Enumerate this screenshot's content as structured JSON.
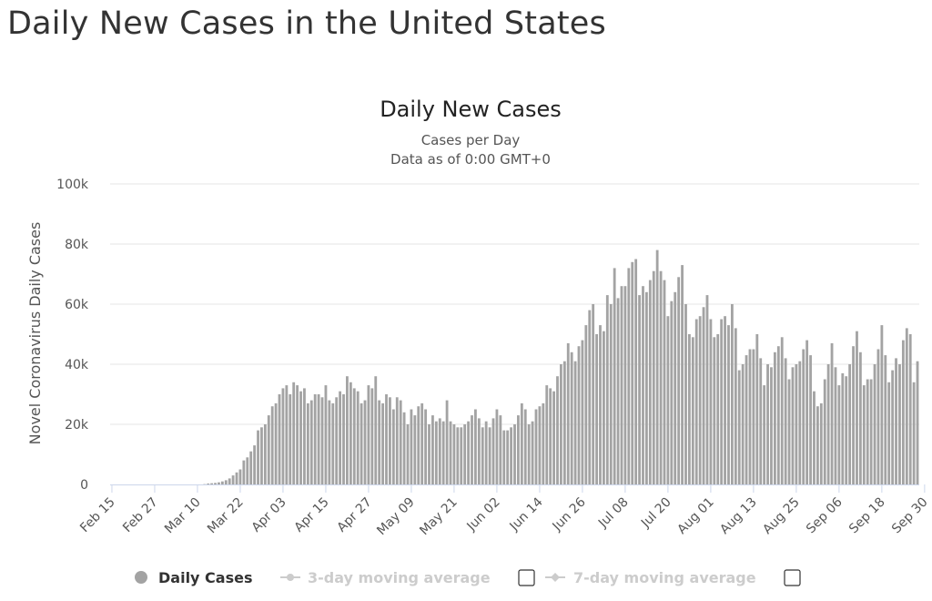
{
  "page": {
    "title": "Daily New Cases in the United States"
  },
  "chart_data": {
    "type": "bar",
    "title": "Daily New Cases",
    "subtitle_lines": [
      "Cases per Day",
      "Data as of 0:00 GMT+0"
    ],
    "ylabel": "Novel Coronavirus Daily Cases",
    "xlabel": "",
    "ylim": [
      0,
      100000
    ],
    "yticks": [
      0,
      20000,
      40000,
      60000,
      80000,
      100000
    ],
    "ytick_labels": [
      "0",
      "20k",
      "40k",
      "60k",
      "80k",
      "100k"
    ],
    "grid": true,
    "start_date": "2020-02-15",
    "x_tick_labels": [
      "Feb 15",
      "Feb 27",
      "Mar 10",
      "Mar 22",
      "Apr 03",
      "Apr 15",
      "Apr 27",
      "May 09",
      "May 21",
      "Jun 02",
      "Jun 14",
      "Jun 26",
      "Jul 08",
      "Jul 20",
      "Aug 01",
      "Aug 13",
      "Aug 25",
      "Sep 06",
      "Sep 18",
      "Sep 30"
    ],
    "x_tick_every_days": 12,
    "colors": {
      "bar": "#a3a3a3",
      "grid": "#e6e6e6",
      "axis": "#ccd6eb",
      "legend_inactive": "#cccccc"
    },
    "series": [
      {
        "name": "Daily Cases",
        "values": [
          0,
          0,
          0,
          0,
          0,
          0,
          0,
          0,
          0,
          0,
          0,
          0,
          0,
          0,
          0,
          0,
          0,
          0,
          0,
          0,
          0,
          0,
          0,
          0,
          0,
          0,
          100,
          300,
          400,
          500,
          700,
          1000,
          1400,
          2000,
          3000,
          4000,
          5000,
          8000,
          9000,
          11000,
          13000,
          18000,
          19000,
          20000,
          23000,
          26000,
          27000,
          30000,
          32000,
          33000,
          30000,
          34000,
          33000,
          31000,
          32000,
          27000,
          28000,
          30000,
          30000,
          29000,
          33000,
          28000,
          27000,
          29000,
          31000,
          30000,
          36000,
          34000,
          32000,
          31000,
          27000,
          28000,
          33000,
          32000,
          36000,
          28000,
          27000,
          30000,
          29000,
          25000,
          29000,
          28000,
          24000,
          20000,
          25000,
          23000,
          26000,
          27000,
          25000,
          20000,
          23000,
          21000,
          22000,
          21000,
          28000,
          21000,
          20000,
          19000,
          19000,
          20000,
          21000,
          23000,
          25000,
          22000,
          19000,
          21000,
          19000,
          22000,
          25000,
          23000,
          18000,
          18000,
          19000,
          20000,
          23000,
          27000,
          25000,
          20000,
          21000,
          25000,
          26000,
          27000,
          33000,
          32000,
          31000,
          36000,
          40000,
          41000,
          47000,
          44000,
          41000,
          46000,
          48000,
          53000,
          58000,
          60000,
          50000,
          53000,
          51000,
          63000,
          60000,
          72000,
          62000,
          66000,
          66000,
          72000,
          74000,
          75000,
          63000,
          66000,
          64000,
          68000,
          71000,
          78000,
          71000,
          68000,
          56000,
          61000,
          64000,
          69000,
          73000,
          60000,
          50000,
          49000,
          55000,
          56000,
          59000,
          63000,
          55000,
          49000,
          50000,
          55000,
          56000,
          53000,
          60000,
          52000,
          38000,
          40000,
          43000,
          45000,
          45000,
          50000,
          42000,
          33000,
          40000,
          39000,
          44000,
          46000,
          49000,
          42000,
          35000,
          39000,
          40000,
          41000,
          45000,
          48000,
          43000,
          31000,
          26000,
          27000,
          35000,
          40000,
          47000,
          39000,
          33000,
          37000,
          36000,
          40000,
          46000,
          51000,
          44000,
          33000,
          35000,
          35000,
          40000,
          45000,
          53000,
          43000,
          34000,
          38000,
          42000,
          40000,
          48000,
          52000,
          50000,
          34000,
          41000
        ]
      }
    ],
    "legend": [
      {
        "label": "Daily Cases",
        "active": true,
        "checkbox": false
      },
      {
        "label": "3-day moving average",
        "active": false,
        "checkbox": true
      },
      {
        "label": "7-day moving average",
        "active": false,
        "checkbox": true
      }
    ],
    "legend_position": "bottom-center"
  }
}
